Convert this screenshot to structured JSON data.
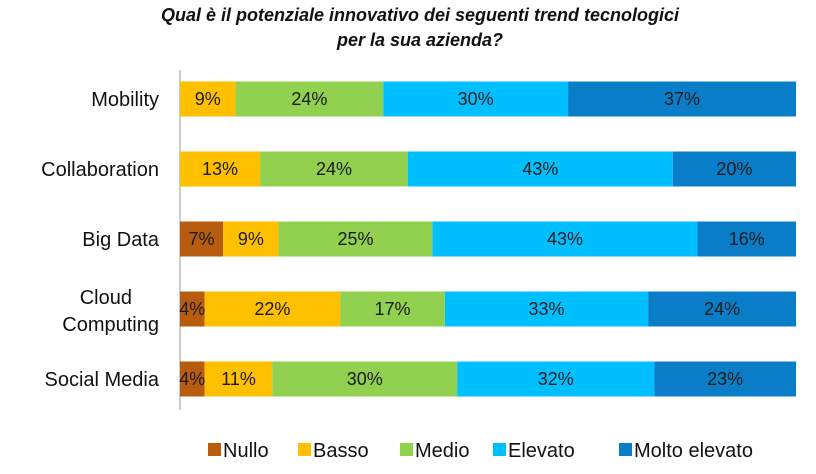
{
  "chart_data": {
    "type": "bar",
    "orientation": "horizontal",
    "stacked": "percent",
    "title": [
      "Qual è il potenziale innovativo dei seguenti trend tecnologici",
      "per la sua azienda?"
    ],
    "categories": [
      "Mobility",
      "Collaboration",
      "Big Data",
      "Cloud\nComputing",
      "Social Media"
    ],
    "series": [
      {
        "name": "Nullo",
        "color": "#b85c0f",
        "values": [
          0,
          0,
          7,
          4,
          4
        ],
        "labels": [
          "",
          "",
          "7%",
          "4%",
          "4%"
        ]
      },
      {
        "name": "Basso",
        "color": "#ffc000",
        "values": [
          9,
          13,
          9,
          22,
          11
        ],
        "labels": [
          "9%",
          "13%",
          "9%",
          "22%",
          "11%"
        ]
      },
      {
        "name": "Medio",
        "color": "#92d050",
        "values": [
          24,
          24,
          25,
          17,
          30
        ],
        "labels": [
          "24%",
          "24%",
          "25%",
          "17%",
          "30%"
        ]
      },
      {
        "name": "Elevato",
        "color": "#00bfff",
        "values": [
          30,
          43,
          43,
          33,
          32
        ],
        "labels": [
          "30%",
          "43%",
          "43%",
          "33%",
          "32%"
        ]
      },
      {
        "name": "Molto elevato",
        "color": "#0a7dc8",
        "values": [
          37,
          20,
          16,
          24,
          23
        ],
        "labels": [
          "37%",
          "20%",
          "16%",
          "24%",
          "23%"
        ]
      }
    ],
    "grid": false,
    "legend_position": "bottom"
  }
}
